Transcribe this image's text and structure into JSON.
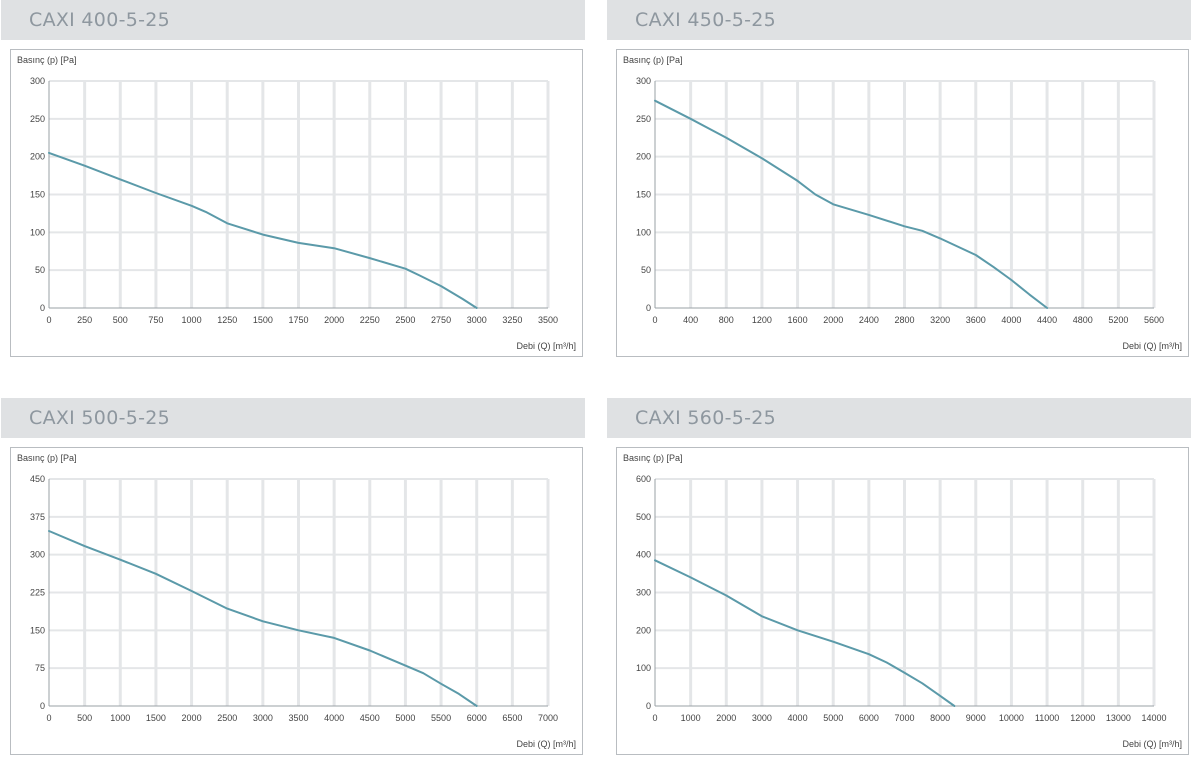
{
  "chart_data": [
    {
      "type": "line",
      "title": "CAXI 400-5-25",
      "ylabel": "Basınç (p) [Pa]",
      "xlabel": "Debi (Q) [m³/h]",
      "xlim": [
        0,
        3500
      ],
      "ylim": [
        0,
        300
      ],
      "xticks": [
        0,
        250,
        500,
        750,
        1000,
        1250,
        1500,
        1750,
        2000,
        2250,
        2500,
        2750,
        3000,
        3250,
        3500
      ],
      "yticks": [
        0,
        50,
        100,
        150,
        200,
        250,
        300
      ],
      "grid": true,
      "line_color": "#5b9aa9",
      "x": [
        0,
        250,
        500,
        750,
        1000,
        1100,
        1250,
        1500,
        1750,
        2000,
        2250,
        2500,
        2600,
        2750,
        2900,
        3000
      ],
      "y": [
        205,
        188,
        170,
        152,
        135,
        127,
        112,
        97,
        86,
        79,
        66,
        52,
        43,
        29,
        12,
        0
      ]
    },
    {
      "type": "line",
      "title": "CAXI 450-5-25",
      "ylabel": "Basınç (p) [Pa]",
      "xlabel": "Debi (Q) [m³/h]",
      "xlim": [
        0,
        5600
      ],
      "ylim": [
        0,
        300
      ],
      "xticks": [
        0,
        400,
        800,
        1200,
        1600,
        2000,
        2400,
        2800,
        3200,
        3600,
        4000,
        4400,
        4800,
        5200,
        5600
      ],
      "yticks": [
        0,
        50,
        100,
        150,
        200,
        250,
        300
      ],
      "grid": true,
      "line_color": "#5b9aa9",
      "x": [
        0,
        400,
        800,
        1200,
        1600,
        1800,
        2000,
        2400,
        2800,
        3000,
        3200,
        3600,
        3800,
        4000,
        4200,
        4400
      ],
      "y": [
        274,
        250,
        225,
        198,
        168,
        150,
        137,
        123,
        108,
        102,
        92,
        70,
        54,
        37,
        18,
        0
      ]
    },
    {
      "type": "line",
      "title": "CAXI 500-5-25",
      "ylabel": "Basınç (p) [Pa]",
      "xlabel": "Debi (Q) [m³/h]",
      "xlim": [
        0,
        7000
      ],
      "ylim": [
        0,
        450
      ],
      "xticks": [
        0,
        500,
        1000,
        1500,
        2000,
        2500,
        3000,
        3500,
        4000,
        4500,
        5000,
        5500,
        6000,
        6500,
        7000
      ],
      "yticks": [
        0,
        75,
        150,
        225,
        300,
        375,
        450
      ],
      "grid": true,
      "line_color": "#5b9aa9",
      "x": [
        0,
        500,
        1000,
        1500,
        2000,
        2500,
        3000,
        3500,
        4000,
        4500,
        5000,
        5250,
        5500,
        5750,
        6000
      ],
      "y": [
        347,
        317,
        290,
        262,
        228,
        193,
        168,
        150,
        135,
        110,
        80,
        65,
        44,
        24,
        0
      ]
    },
    {
      "type": "line",
      "title": "CAXI 560-5-25",
      "ylabel": "Basınç (p) [Pa]",
      "xlabel": "Debi (Q) [m³/h]",
      "xlim": [
        0,
        14000
      ],
      "ylim": [
        0,
        600
      ],
      "xticks": [
        0,
        1000,
        2000,
        3000,
        4000,
        5000,
        6000,
        7000,
        8000,
        9000,
        10000,
        11000,
        12000,
        13000,
        14000
      ],
      "yticks": [
        0,
        100,
        200,
        300,
        400,
        500,
        600
      ],
      "grid": true,
      "line_color": "#5b9aa9",
      "x": [
        0,
        1000,
        2000,
        3000,
        4000,
        5000,
        6000,
        6500,
        7000,
        7500,
        8000,
        8400
      ],
      "y": [
        385,
        340,
        292,
        237,
        200,
        170,
        137,
        115,
        88,
        60,
        27,
        0
      ]
    }
  ]
}
